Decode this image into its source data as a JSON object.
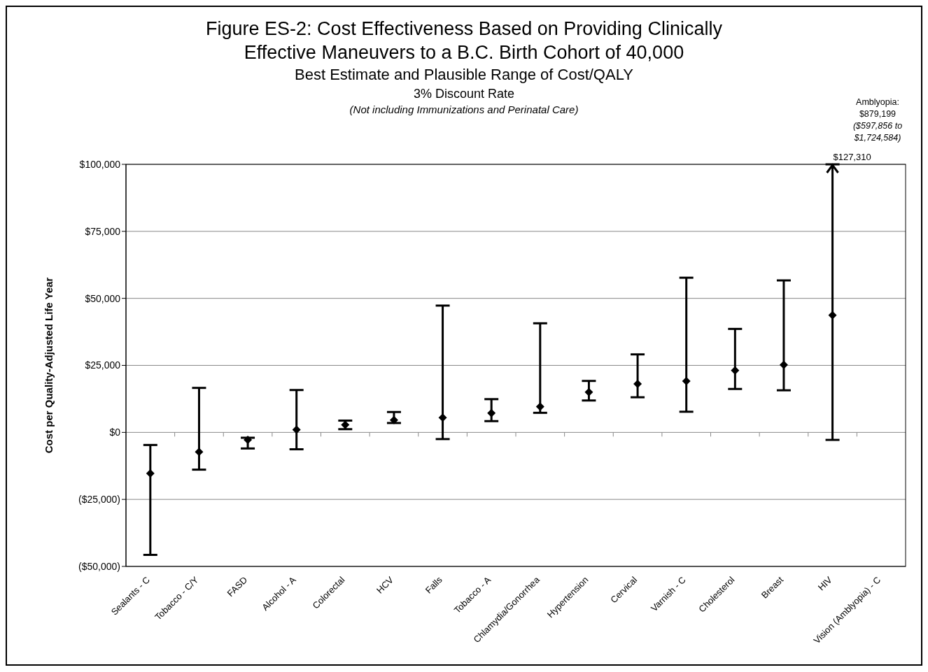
{
  "chart_data": {
    "type": "scatter",
    "title": "Figure ES-2: Cost Effectiveness Based on Providing Clinically Effective Maneuvers to a B.C. Birth Cohort of 40,000",
    "subtitle": "Best Estimate and Plausible Range of Cost/QALY",
    "ylabel": "Cost per Quality-Adjusted Life Year",
    "categories": [
      "Sealants - C",
      "Tobacco - C/Y",
      "FASD",
      "Alcohol - A",
      "Colorectal",
      "HCV",
      "Falls",
      "Tobacco - A",
      "Chlamydia/Gonorrhea",
      "Hypertension",
      "Cervical",
      "Varnish - C",
      "Cholesterol",
      "Breast",
      "HIV",
      "Vision (Amblyopia) - C"
    ],
    "values": [
      -15300,
      -7300,
      -2800,
      1000,
      2800,
      4600,
      5500,
      7200,
      9600,
      15000,
      18100,
      19100,
      23100,
      25200,
      43700,
      null
    ],
    "errors": [
      [
        -45700,
        -4700
      ],
      [
        -13900,
        16600
      ],
      [
        -6000,
        -2000
      ],
      [
        -6300,
        15800
      ],
      [
        1200,
        4400
      ],
      [
        3500,
        7600
      ],
      [
        -2500,
        47300
      ],
      [
        4200,
        12400
      ],
      [
        7300,
        40700
      ],
      [
        11900,
        19200
      ],
      [
        13100,
        29100
      ],
      [
        7700,
        57700
      ],
      [
        16200,
        38600
      ],
      [
        15700,
        56700
      ],
      [
        -2800,
        100000
      ],
      null
    ],
    "color": "#000000",
    "marker": "diamond",
    "grid": "y",
    "legend": false,
    "ylim": [
      -50000,
      100000
    ],
    "yticks": [
      {
        "value": -50000,
        "label": "($50,000)"
      },
      {
        "value": -25000,
        "label": "($25,000)"
      },
      {
        "value": 0,
        "label": "$0"
      },
      {
        "value": 25000,
        "label": "$25,000"
      },
      {
        "value": 50000,
        "label": "$50,000"
      },
      {
        "value": 75000,
        "label": "$75,000"
      },
      {
        "value": 100000,
        "label": "$100,000"
      }
    ],
    "annotations": [
      "3% Discount Rate",
      "(Not including Immunizations and Perinatal Care)",
      {
        "text": "$127,310",
        "x": "HIV",
        "y": 100000
      },
      "Amblyopia: $879,199",
      "($597,856 to $1,724,584)"
    ]
  }
}
